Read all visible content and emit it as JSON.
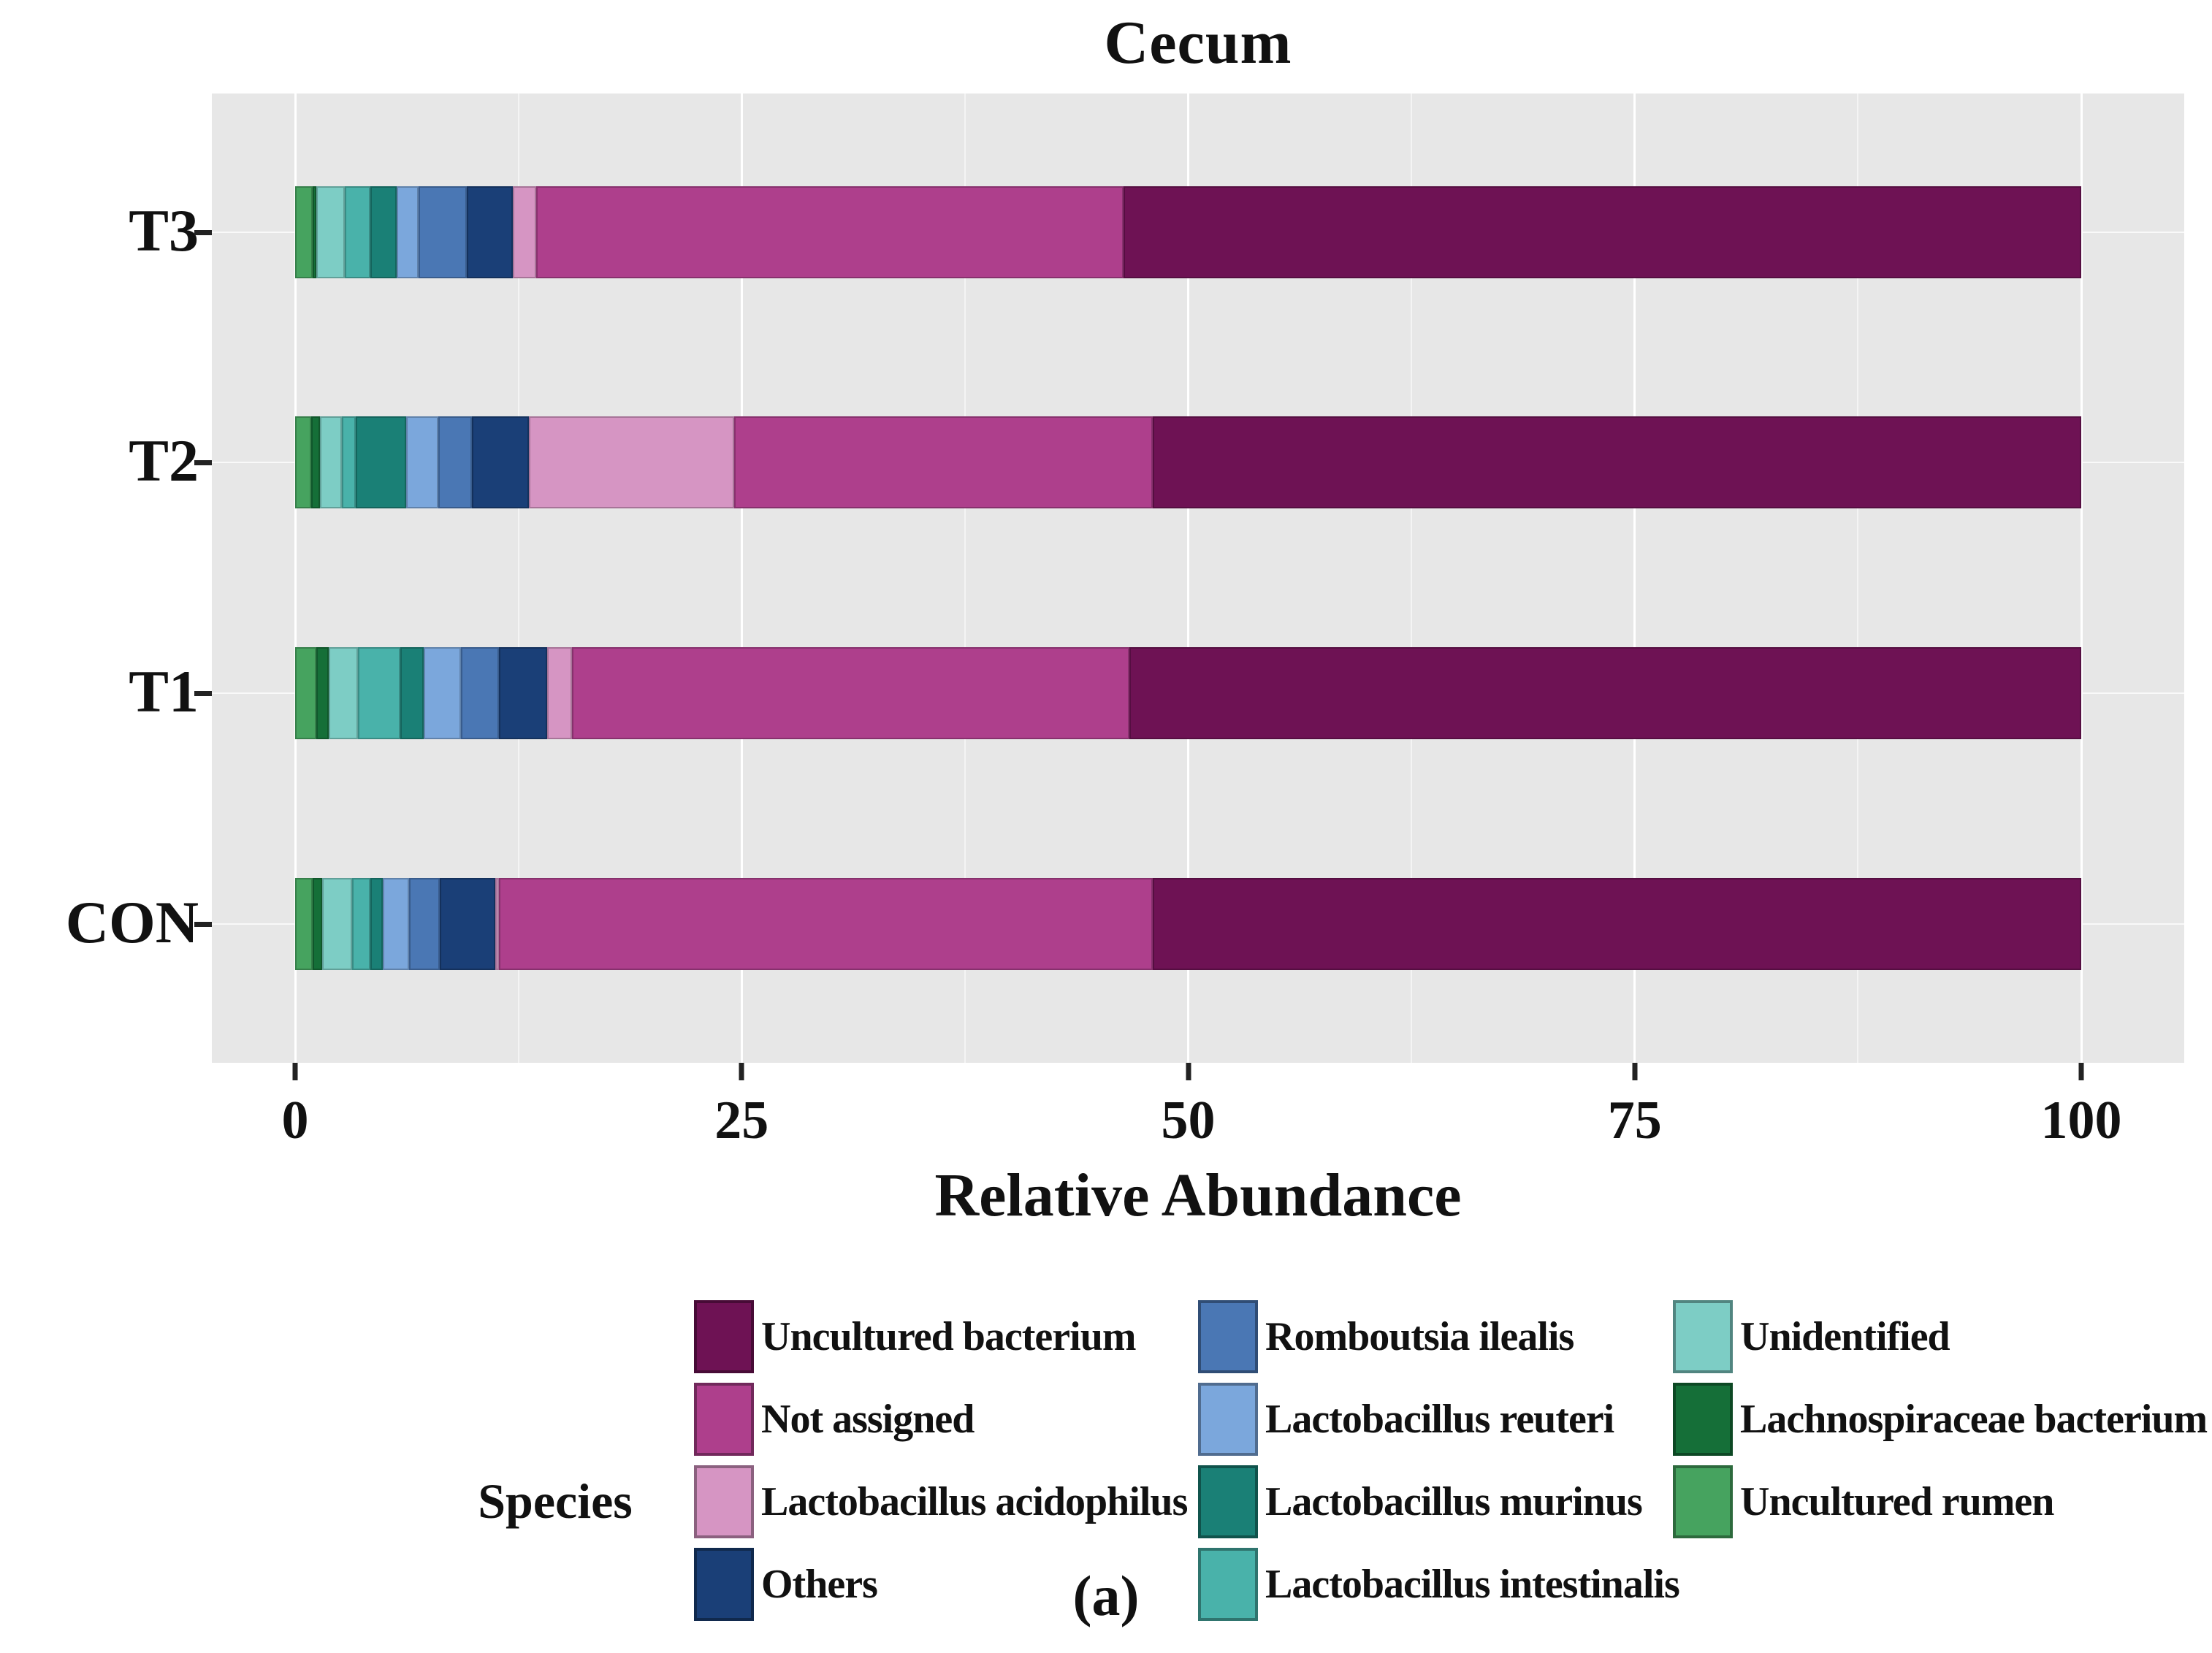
{
  "figure": {
    "caption": "(a)"
  },
  "chart_data": {
    "type": "bar",
    "orientation": "horizontal",
    "stacked": true,
    "title": "Cecum",
    "xlabel": "Relative Abundance",
    "legend_title": "Species",
    "xlim": [
      0,
      100
    ],
    "xticks": [
      0,
      25,
      50,
      75,
      100
    ],
    "grid": "white vertical major and minor gridlines on light gray panel",
    "legend_position": "bottom",
    "categories": [
      "T3",
      "T2",
      "T1",
      "CON"
    ],
    "series": [
      {
        "name": "Uncultured rumen",
        "color": "#46A35F",
        "values": [
          1.0,
          0.9,
          1.2,
          1.0
        ]
      },
      {
        "name": "Lachnospiraceae bacterium",
        "color": "#156F38",
        "values": [
          0.2,
          0.5,
          0.7,
          0.5
        ]
      },
      {
        "name": "Unidentified",
        "color": "#7DCDC5",
        "values": [
          1.6,
          1.2,
          1.6,
          1.7
        ]
      },
      {
        "name": "Lactobacillus intestinalis",
        "color": "#49B2AA",
        "values": [
          1.4,
          0.8,
          2.4,
          1.0
        ]
      },
      {
        "name": "Lactobacillus murinus",
        "color": "#1A8076",
        "values": [
          1.5,
          2.8,
          1.3,
          0.7
        ]
      },
      {
        "name": "Lactobacillus reuteri",
        "color": "#7BA7DC",
        "values": [
          1.2,
          1.8,
          2.1,
          1.5
        ]
      },
      {
        "name": "Romboutsia ilealis",
        "color": "#4A77B4",
        "values": [
          2.7,
          1.9,
          2.1,
          1.7
        ]
      },
      {
        "name": "Others",
        "color": "#1A3F77",
        "values": [
          2.6,
          3.2,
          2.7,
          3.1
        ]
      },
      {
        "name": "Lactobacillus acidophilus",
        "color": "#D695C3",
        "values": [
          1.3,
          11.5,
          1.4,
          0.2
        ]
      },
      {
        "name": "Not assigned",
        "color": "#AE3F8C",
        "values": [
          32.9,
          23.4,
          31.2,
          36.6
        ]
      },
      {
        "name": "Uncultured bacterium",
        "color": "#6E1254",
        "values": [
          53.6,
          52.0,
          53.3,
          52.0
        ]
      }
    ],
    "legend_columns": [
      [
        "Uncultured bacterium",
        "Not assigned",
        "Lactobacillus acidophilus",
        "Others"
      ],
      [
        "Romboutsia ilealis",
        "Lactobacillus reuteri",
        "Lactobacillus murinus",
        "Lactobacillus intestinalis"
      ],
      [
        "Unidentified",
        "Lachnospiraceae bacterium",
        "Uncultured rumen"
      ]
    ]
  }
}
